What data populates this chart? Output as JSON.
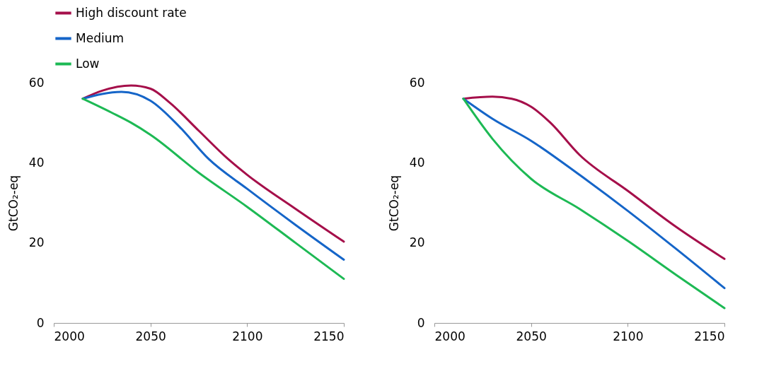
{
  "chart_data": [
    {
      "type": "line",
      "ylabel": "GtCO₂-eq",
      "xlim": [
        2000,
        2150
      ],
      "xticks": [
        2000,
        2050,
        2100,
        2150
      ],
      "ylim": [
        0,
        60
      ],
      "yticks": [
        0,
        20,
        40,
        60
      ],
      "legend": "top",
      "grid": false,
      "line_style": "solid",
      "marker": "none",
      "series": [
        {
          "name": "High discount rate",
          "color": "#a50f4a",
          "x": [
            2015,
            2025,
            2040,
            2050,
            2060,
            2075,
            2090,
            2100,
            2125,
            2150
          ],
          "values": [
            56,
            58,
            59.3,
            58.5,
            55,
            48,
            41,
            37,
            28.5,
            20.3
          ]
        },
        {
          "name": "Medium",
          "color": "#1565c8",
          "x": [
            2015,
            2035,
            2050,
            2065,
            2080,
            2100,
            2125,
            2150
          ],
          "values": [
            56,
            57.7,
            55.5,
            49,
            41,
            33.5,
            24.5,
            15.8
          ]
        },
        {
          "name": "Low",
          "color": "#1db954",
          "x": [
            2015,
            2030,
            2040,
            2050,
            2075,
            2100,
            2125,
            2150
          ],
          "values": [
            56,
            52.5,
            50,
            47,
            37.5,
            29,
            20,
            11
          ]
        }
      ]
    },
    {
      "type": "line",
      "ylabel": "GtCO₂-eq",
      "xlim": [
        2000,
        2150
      ],
      "xticks": [
        2000,
        2050,
        2100,
        2150
      ],
      "ylim": [
        0,
        60
      ],
      "yticks": [
        0,
        20,
        40,
        60
      ],
      "grid": false,
      "line_style": "solid",
      "marker": "none",
      "series": [
        {
          "color": "#a50f4a",
          "x": [
            2015,
            2030,
            2040,
            2050,
            2060,
            2075,
            2100,
            2125,
            2150
          ],
          "values": [
            56,
            56.5,
            56,
            54,
            50,
            42,
            33,
            24,
            16
          ]
        },
        {
          "color": "#1565c8",
          "x": [
            2015,
            2030,
            2050,
            2075,
            2100,
            2125,
            2150
          ],
          "values": [
            56,
            51,
            45.5,
            37,
            28,
            18.5,
            8.7
          ]
        },
        {
          "color": "#1db954",
          "x": [
            2015,
            2030,
            2050,
            2075,
            2100,
            2125,
            2150
          ],
          "values": [
            56,
            46,
            36,
            28.5,
            20.5,
            12,
            3.7
          ]
        }
      ]
    }
  ]
}
